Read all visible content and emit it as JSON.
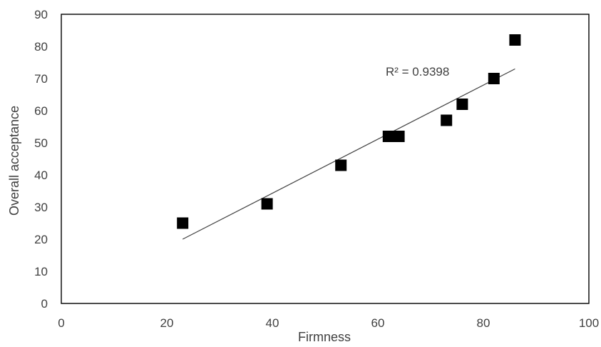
{
  "chart_data": {
    "type": "scatter",
    "title": "",
    "xlabel": "Firmness",
    "ylabel": "Overall acceptance",
    "xlim": [
      0,
      100
    ],
    "ylim": [
      0,
      90
    ],
    "x_ticks": [
      "0",
      "20",
      "40",
      "60",
      "80",
      "100"
    ],
    "y_ticks": [
      "0",
      "10",
      "20",
      "30",
      "40",
      "50",
      "60",
      "70",
      "80",
      "90"
    ],
    "grid": false,
    "legend": "none",
    "series": [
      {
        "marker": "square",
        "color": "#000000",
        "points": [
          {
            "x": 23,
            "y": 25
          },
          {
            "x": 39,
            "y": 31
          },
          {
            "x": 53,
            "y": 43
          },
          {
            "x": 62,
            "y": 52
          },
          {
            "x": 64,
            "y": 52
          },
          {
            "x": 73,
            "y": 57
          },
          {
            "x": 76,
            "y": 62
          },
          {
            "x": 82,
            "y": 70
          },
          {
            "x": 86,
            "y": 82
          }
        ]
      }
    ],
    "trendline": {
      "type": "linear",
      "color": "#404040",
      "x_range": [
        23,
        86
      ],
      "y_range": [
        20,
        73
      ]
    },
    "annotations": [
      {
        "text": "R² = 0.9398"
      }
    ]
  }
}
